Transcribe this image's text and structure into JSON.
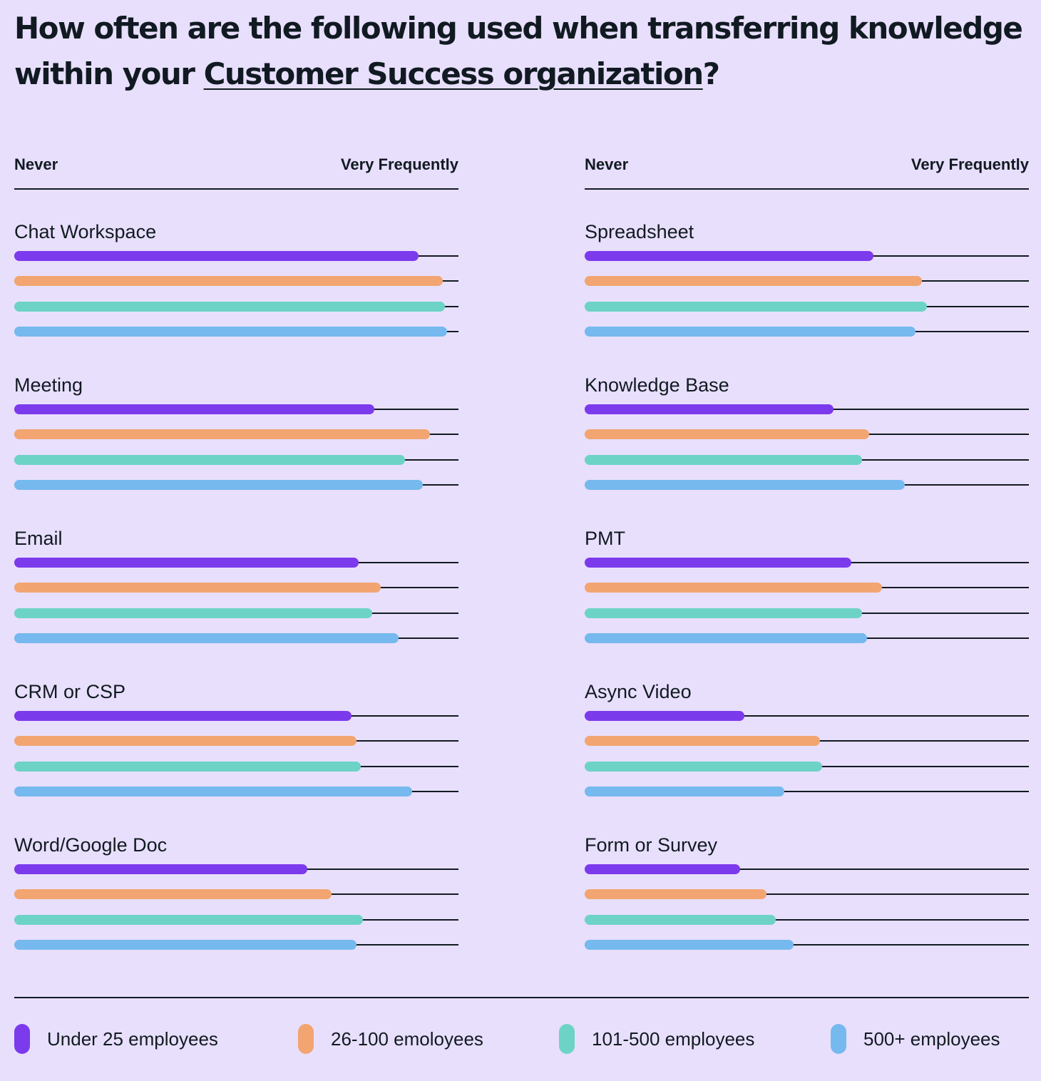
{
  "title": {
    "before": "How often are the following used when transferring knowledge within your ",
    "highlight": "Customer Success organization",
    "after": "?"
  },
  "scale": {
    "min_label": "Never",
    "max_label": "Very Frequently"
  },
  "colors": {
    "under25": "#7c3aed",
    "26to100": "#f2a571",
    "101to500": "#6dd3c6",
    "500plus": "#75b9ee"
  },
  "legend": [
    {
      "label": "Under 25 employees",
      "color": "#7c3aed"
    },
    {
      "label": "26-100 emoloyees",
      "color": "#f2a571"
    },
    {
      "label": "101-500 employees",
      "color": "#6dd3c6"
    },
    {
      "label": "500+ employees",
      "color": "#75b9ee"
    }
  ],
  "chart_data": {
    "type": "bar",
    "orientation": "horizontal",
    "value_range": [
      0,
      1
    ],
    "series_names": [
      "Under 25 employees",
      "26-100 emoloyees",
      "101-500 employees",
      "500+ employees"
    ],
    "panels": [
      {
        "categories": [
          {
            "label": "Chat Workspace",
            "values": [
              0.91,
              0.965,
              0.97,
              0.975
            ]
          },
          {
            "label": "Meeting",
            "values": [
              0.81,
              0.935,
              0.88,
              0.92
            ]
          },
          {
            "label": "Email",
            "values": [
              0.775,
              0.825,
              0.805,
              0.865
            ]
          },
          {
            "label": "CRM or CSP",
            "values": [
              0.76,
              0.77,
              0.78,
              0.895
            ]
          },
          {
            "label": "Word/Google Doc",
            "values": [
              0.66,
              0.715,
              0.785,
              0.77
            ]
          }
        ]
      },
      {
        "categories": [
          {
            "label": "Spreadsheet",
            "values": [
              0.65,
              0.76,
              0.77,
              0.745
            ]
          },
          {
            "label": "Knowledge Base",
            "values": [
              0.56,
              0.64,
              0.625,
              0.72
            ]
          },
          {
            "label": "PMT",
            "values": [
              0.6,
              0.67,
              0.625,
              0.635
            ]
          },
          {
            "label": "Async Video",
            "values": [
              0.36,
              0.53,
              0.535,
              0.45
            ]
          },
          {
            "label": "Form or Survey",
            "values": [
              0.35,
              0.41,
              0.43,
              0.47
            ]
          }
        ]
      }
    ]
  }
}
